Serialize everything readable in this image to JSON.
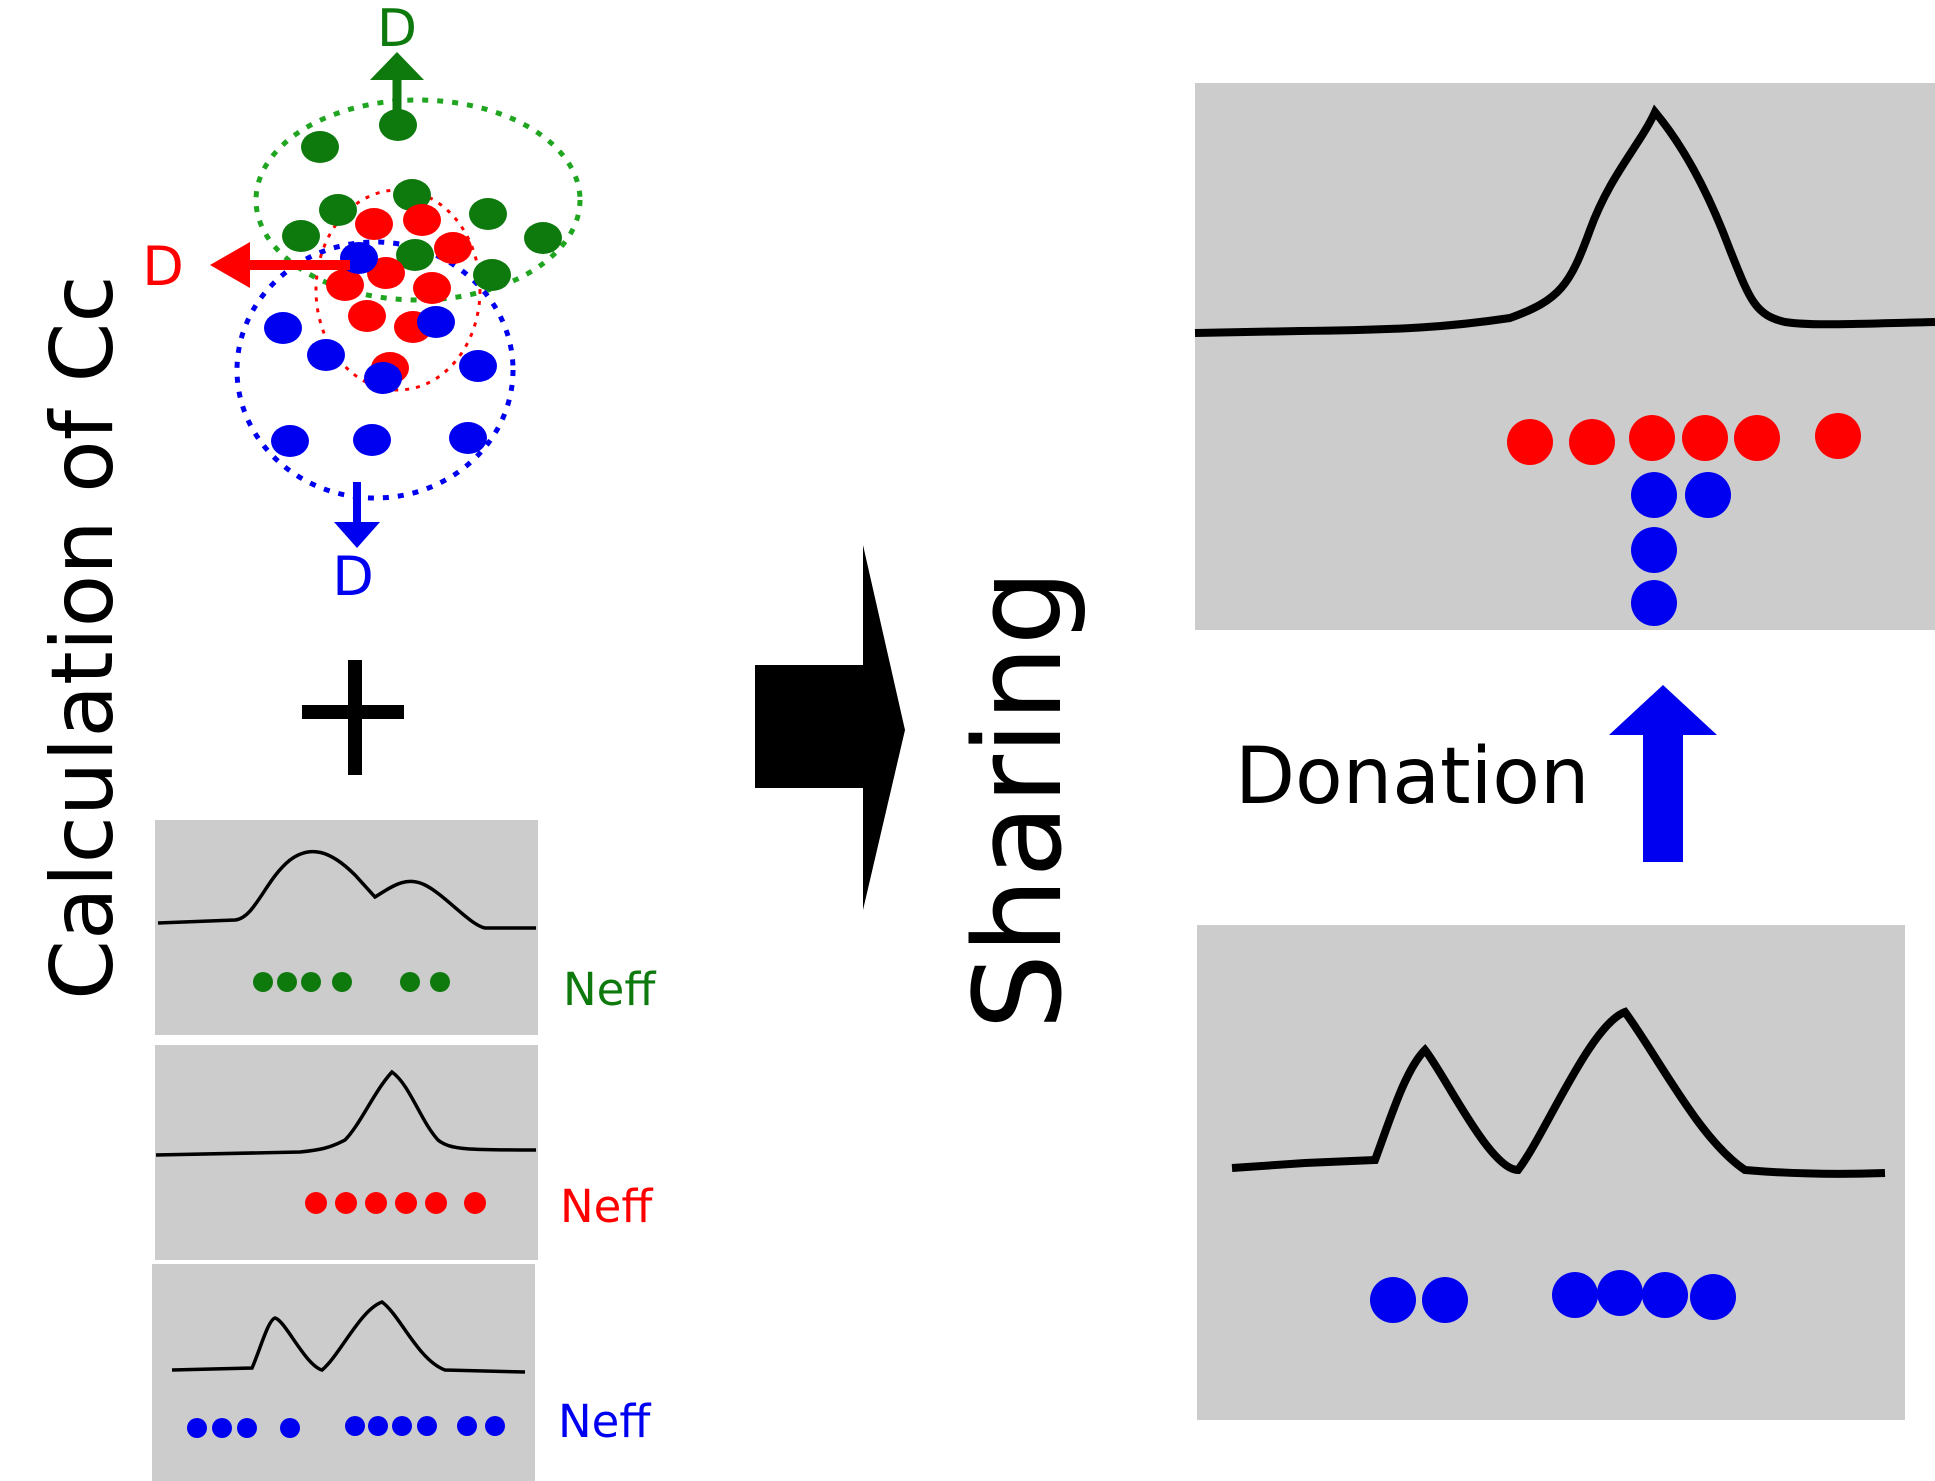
{
  "left_label": "Calculation of Cc",
  "center_label": "Sharing",
  "donation_label": "Donation",
  "cluster_marker": "D",
  "plus_sign": "+",
  "neff_label": "Neff",
  "colors": {
    "green": "#0e7a0e",
    "red": "#ff0000",
    "blue": "#0000f0",
    "panel": "#cccccc",
    "curve": "#000000"
  },
  "icons": {
    "big_arrow": "right-arrow-icon",
    "donation_arrow": "up-arrow-icon"
  }
}
